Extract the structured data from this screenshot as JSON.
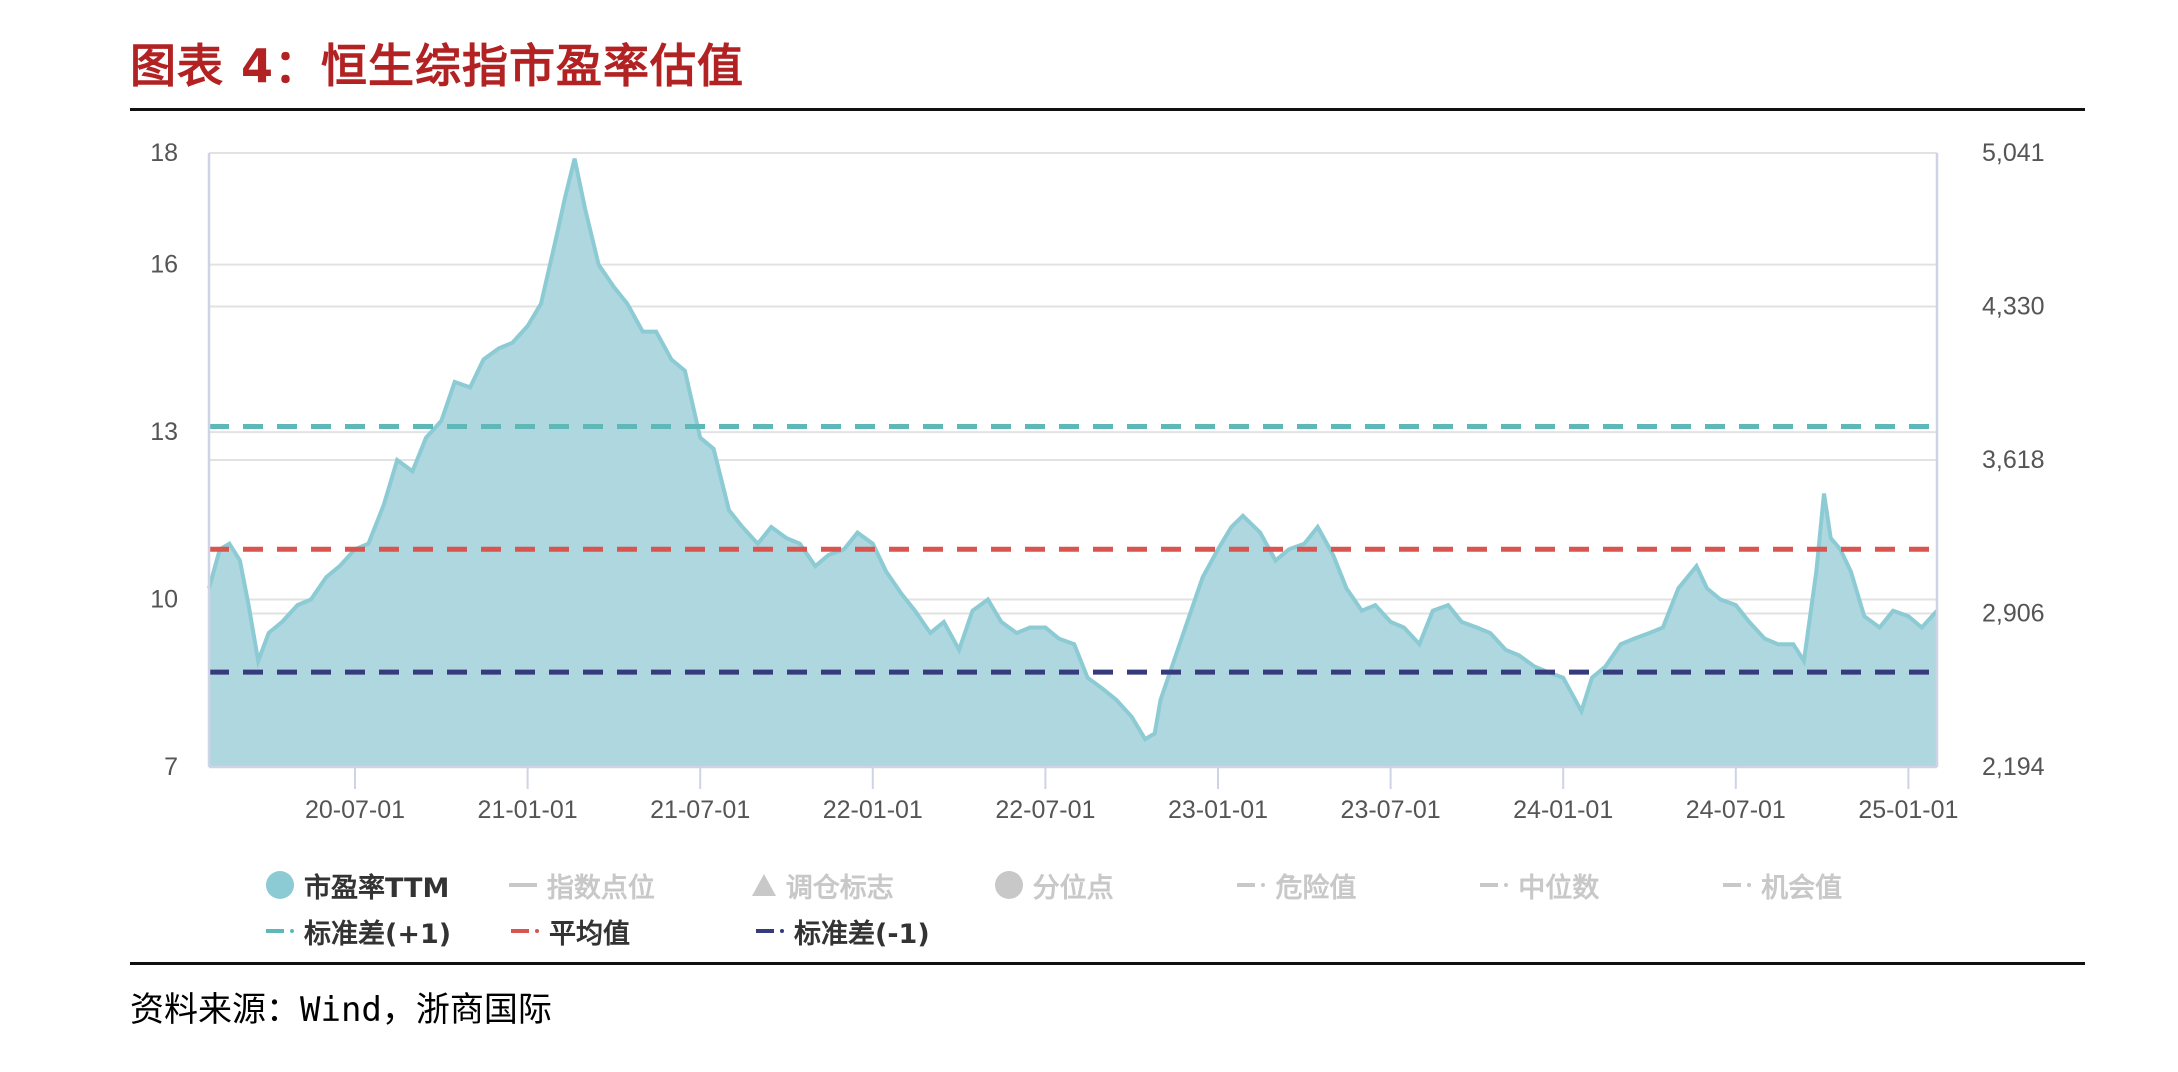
{
  "header": {
    "title": "图表 4：恒生综指市盈率估值"
  },
  "footer": {
    "source": "资料来源：Wind，浙商国际"
  },
  "colors": {
    "title": "#b22222",
    "area_fill": "#aed7df",
    "area_line": "#8ccbd4",
    "sd_plus": "#5fb8b8",
    "mean": "#d9534f",
    "sd_minus": "#353b7c",
    "grid": "#e2e2e2",
    "axis": "#cfd3e6",
    "legend_inactive": "#c8c8c8",
    "legend_active_text": "#333333"
  },
  "legend": {
    "row1": [
      {
        "label": "市盈率TTM",
        "icon": "circle",
        "color": "#8ccbd4",
        "active": true
      },
      {
        "label": "指数点位",
        "icon": "line",
        "color": "#c8c8c8",
        "active": false
      },
      {
        "label": "调仓标志",
        "icon": "triangle",
        "color": "#c8c8c8",
        "active": false
      },
      {
        "label": "分位点",
        "icon": "circle",
        "color": "#c8c8c8",
        "active": false
      },
      {
        "label": "危险值",
        "icon": "dash-dot",
        "color": "#c8c8c8",
        "active": false
      },
      {
        "label": "中位数",
        "icon": "dash-dot",
        "color": "#c8c8c8",
        "active": false
      },
      {
        "label": "机会值",
        "icon": "dash-dot",
        "color": "#c8c8c8",
        "active": false
      }
    ],
    "row2": [
      {
        "label": "标准差(+1)",
        "icon": "dash-dot",
        "color": "#5fb8b8",
        "active": true
      },
      {
        "label": "平均值",
        "icon": "dash-dot",
        "color": "#d9534f",
        "active": true
      },
      {
        "label": "标准差(-1)",
        "icon": "dash-dot",
        "color": "#353b7c",
        "active": true
      }
    ]
  },
  "chart_data": {
    "type": "area",
    "title": "恒生综指市盈率估值",
    "xlabel": "",
    "ylabel": "市盈率TTM",
    "ylabel_right": "指数点位",
    "y_ticks_left": [
      18,
      16,
      13,
      10,
      7
    ],
    "y_ticks_right": [
      "5,041",
      "4,330",
      "3,618",
      "2,906",
      "2,194"
    ],
    "ylim": [
      7,
      18
    ],
    "ylim_right": [
      2194,
      5041
    ],
    "x_ticks": [
      "20-07-01",
      "21-01-01",
      "21-07-01",
      "22-01-01",
      "22-07-01",
      "23-01-01",
      "23-07-01",
      "24-01-01",
      "24-07-01",
      "25-01-01"
    ],
    "xlim": [
      "2020-02",
      "2025-02"
    ],
    "grid": true,
    "legend_position": "bottom",
    "reference_lines": [
      {
        "name": "标准差(+1)",
        "value": 13.1
      },
      {
        "name": "平均值",
        "value": 10.9
      },
      {
        "name": "标准差(-1)",
        "value": 8.7
      }
    ],
    "series": [
      {
        "name": "市盈率TTM",
        "x": [
          "2020-02-01",
          "2020-02-10",
          "2020-02-20",
          "2020-03-01",
          "2020-03-10",
          "2020-03-20",
          "2020-04-01",
          "2020-04-15",
          "2020-05-01",
          "2020-05-15",
          "2020-06-01",
          "2020-06-15",
          "2020-07-01",
          "2020-07-15",
          "2020-08-01",
          "2020-08-15",
          "2020-09-01",
          "2020-09-15",
          "2020-10-01",
          "2020-10-15",
          "2020-11-01",
          "2020-11-15",
          "2020-12-01",
          "2020-12-15",
          "2021-01-01",
          "2021-01-15",
          "2021-02-01",
          "2021-02-10",
          "2021-02-20",
          "2021-03-01",
          "2021-03-15",
          "2021-04-01",
          "2021-04-15",
          "2021-05-01",
          "2021-05-15",
          "2021-06-01",
          "2021-06-15",
          "2021-07-01",
          "2021-07-15",
          "2021-08-01",
          "2021-08-15",
          "2021-09-01",
          "2021-09-15",
          "2021-10-01",
          "2021-10-15",
          "2021-11-01",
          "2021-11-15",
          "2021-12-01",
          "2021-12-15",
          "2022-01-01",
          "2022-01-15",
          "2022-02-01",
          "2022-02-15",
          "2022-03-01",
          "2022-03-15",
          "2022-04-01",
          "2022-04-15",
          "2022-05-01",
          "2022-05-15",
          "2022-06-01",
          "2022-06-15",
          "2022-07-01",
          "2022-07-15",
          "2022-08-01",
          "2022-08-15",
          "2022-09-01",
          "2022-09-15",
          "2022-10-01",
          "2022-10-15",
          "2022-10-25",
          "2022-11-01",
          "2022-11-15",
          "2022-12-01",
          "2022-12-15",
          "2023-01-01",
          "2023-01-15",
          "2023-01-27",
          "2023-02-15",
          "2023-03-01",
          "2023-03-15",
          "2023-04-01",
          "2023-04-15",
          "2023-05-01",
          "2023-05-15",
          "2023-06-01",
          "2023-06-15",
          "2023-07-01",
          "2023-07-15",
          "2023-08-01",
          "2023-08-15",
          "2023-09-01",
          "2023-09-15",
          "2023-10-01",
          "2023-10-15",
          "2023-11-01",
          "2023-11-15",
          "2023-12-01",
          "2023-12-15",
          "2024-01-01",
          "2024-01-20",
          "2024-02-01",
          "2024-02-15",
          "2024-03-01",
          "2024-03-15",
          "2024-04-01",
          "2024-04-15",
          "2024-05-01",
          "2024-05-20",
          "2024-06-01",
          "2024-06-15",
          "2024-07-01",
          "2024-07-15",
          "2024-08-01",
          "2024-08-15",
          "2024-09-01",
          "2024-09-12",
          "2024-09-25",
          "2024-10-03",
          "2024-10-10",
          "2024-10-20",
          "2024-11-01",
          "2024-11-15",
          "2024-12-01",
          "2024-12-15",
          "2025-01-01",
          "2025-01-15",
          "2025-02-01"
        ],
        "values": [
          10.2,
          10.9,
          11.0,
          10.7,
          9.9,
          8.9,
          9.4,
          9.6,
          9.9,
          10.0,
          10.4,
          10.6,
          10.9,
          11.0,
          11.7,
          12.5,
          12.3,
          12.9,
          13.2,
          13.9,
          13.8,
          14.3,
          14.5,
          14.6,
          14.9,
          15.3,
          16.5,
          17.2,
          17.9,
          17.0,
          16.0,
          15.6,
          15.3,
          14.8,
          14.8,
          14.3,
          14.1,
          12.9,
          12.7,
          11.6,
          11.3,
          11.0,
          11.3,
          11.1,
          11.0,
          10.6,
          10.8,
          10.9,
          11.2,
          11.0,
          10.5,
          10.1,
          9.8,
          9.4,
          9.6,
          9.1,
          9.8,
          10.0,
          9.6,
          9.4,
          9.5,
          9.5,
          9.3,
          9.2,
          8.6,
          8.4,
          8.2,
          7.9,
          7.5,
          7.6,
          8.2,
          8.9,
          9.7,
          10.4,
          10.9,
          11.3,
          11.5,
          11.2,
          10.7,
          10.9,
          11.0,
          11.3,
          10.8,
          10.2,
          9.8,
          9.9,
          9.6,
          9.5,
          9.2,
          9.8,
          9.9,
          9.6,
          9.5,
          9.4,
          9.1,
          9.0,
          8.8,
          8.7,
          8.6,
          8.0,
          8.6,
          8.8,
          9.2,
          9.3,
          9.4,
          9.5,
          10.2,
          10.6,
          10.2,
          10.0,
          9.9,
          9.6,
          9.3,
          9.2,
          9.2,
          8.9,
          10.5,
          11.9,
          11.1,
          10.9,
          10.5,
          9.7,
          9.5,
          9.8,
          9.7,
          9.5,
          9.8
        ]
      }
    ]
  }
}
